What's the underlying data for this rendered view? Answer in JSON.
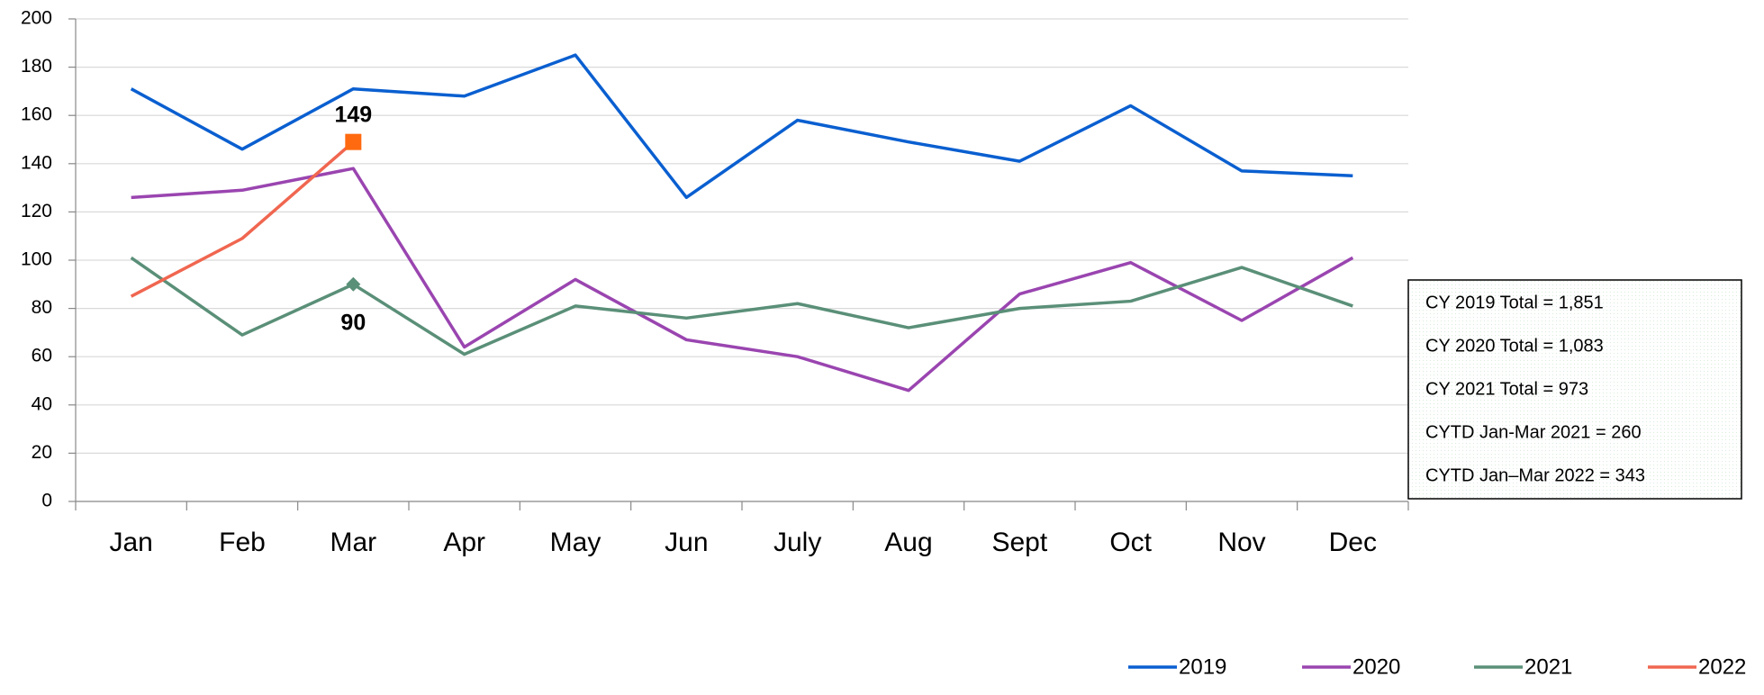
{
  "chart_data": {
    "type": "line",
    "categories": [
      "Jan",
      "Feb",
      "Mar",
      "Apr",
      "May",
      "Jun",
      "July",
      "Aug",
      "Sept",
      "Oct",
      "Nov",
      "Dec"
    ],
    "series": [
      {
        "name": "2019",
        "color": "#0a5fd0",
        "values": [
          171,
          146,
          171,
          168,
          185,
          126,
          158,
          149,
          141,
          164,
          137,
          135
        ]
      },
      {
        "name": "2020",
        "color": "#9a45b0",
        "values": [
          126,
          129,
          138,
          64,
          92,
          67,
          60,
          46,
          86,
          99,
          75,
          101
        ]
      },
      {
        "name": "2021",
        "color": "#5a8f78",
        "values": [
          101,
          69,
          90,
          61,
          81,
          76,
          82,
          72,
          80,
          83,
          97,
          81
        ],
        "marker": "diamond",
        "marker_color": "#5a8f78",
        "labeled_points": [
          2
        ],
        "label_position": "below"
      },
      {
        "name": "2022",
        "color": "#f06650",
        "values": [
          85,
          109,
          149,
          null,
          null,
          null,
          null,
          null,
          null,
          null,
          null,
          null
        ],
        "marker": "square",
        "marker_color": "#ff6a10",
        "labeled_points": [
          2
        ],
        "label_position": "above"
      }
    ],
    "ylim": [
      0,
      200
    ],
    "yticks": [
      0,
      20,
      40,
      60,
      80,
      100,
      120,
      140,
      160,
      180,
      200
    ],
    "grid": true,
    "legend": "bottom-right",
    "annotations": [
      "CY 2019 Total =  1,851",
      "CY 2020 Total =  1,083",
      "CY 2021 Total =  973",
      "CYTD Jan-Mar 2021 = 260",
      "CYTD Jan–Mar 2022 = 343"
    ]
  }
}
